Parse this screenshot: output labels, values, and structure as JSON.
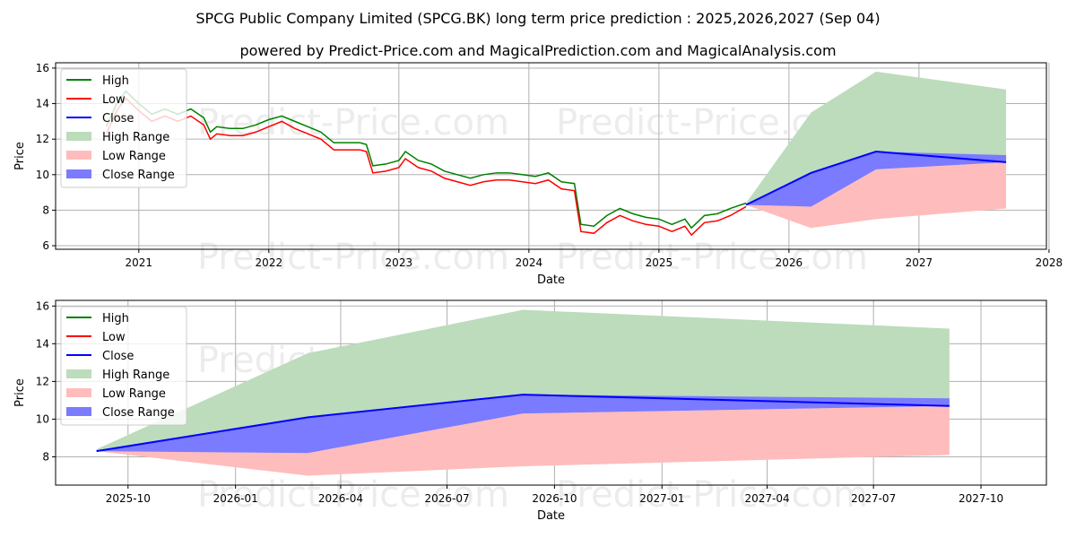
{
  "title": "SPCG Public Company Limited (SPCG.BK) long term price prediction : 2025,2026,2027 (Sep 04)",
  "subtitle": "powered by Predict-Price.com and MagicalPrediction.com and MagicalAnalysis.com",
  "watermark": "Predict-Price.com",
  "colors": {
    "high": "#008000",
    "low": "#ff0000",
    "close": "#0000ff",
    "high_range": "#bcdcbc",
    "low_range": "#ffbcbc",
    "close_range": "#7b7bff"
  },
  "legend": [
    "High",
    "Low",
    "Close",
    "High Range",
    "Low Range",
    "Close Range"
  ],
  "chart_data": [
    {
      "type": "line",
      "xlabel": "Date",
      "ylabel": "Price",
      "xlim": [
        2020.36,
        2027.98
      ],
      "ylim": [
        5.8,
        16.3
      ],
      "xticks": [
        2021,
        2022,
        2023,
        2024,
        2025,
        2026,
        2027,
        2028
      ],
      "yticks": [
        6,
        8,
        10,
        12,
        14,
        16
      ],
      "grid": true,
      "legend_placement": "top-left",
      "history": {
        "x": [
          2020.75,
          2020.83,
          2020.9,
          2021.0,
          2021.1,
          2021.2,
          2021.3,
          2021.4,
          2021.5,
          2021.55,
          2021.6,
          2021.7,
          2021.8,
          2021.9,
          2022.0,
          2022.1,
          2022.2,
          2022.3,
          2022.4,
          2022.5,
          2022.6,
          2022.7,
          2022.75,
          2022.8,
          2022.9,
          2023.0,
          2023.05,
          2023.15,
          2023.25,
          2023.35,
          2023.45,
          2023.55,
          2023.65,
          2023.75,
          2023.85,
          2023.95,
          2024.05,
          2024.15,
          2024.25,
          2024.35,
          2024.4,
          2024.5,
          2024.6,
          2024.7,
          2024.8,
          2024.9,
          2025.0,
          2025.1,
          2025.2,
          2025.25,
          2025.35,
          2025.45,
          2025.55,
          2025.67
        ],
        "high": [
          12.7,
          14.0,
          14.7,
          14.0,
          13.4,
          13.7,
          13.4,
          13.7,
          13.2,
          12.4,
          12.7,
          12.6,
          12.6,
          12.8,
          13.1,
          13.3,
          13.0,
          12.7,
          12.4,
          11.8,
          11.8,
          11.8,
          11.7,
          10.5,
          10.6,
          10.8,
          11.3,
          10.8,
          10.6,
          10.2,
          10.0,
          9.8,
          10.0,
          10.1,
          10.1,
          10.0,
          9.9,
          10.1,
          9.6,
          9.5,
          7.2,
          7.1,
          7.7,
          8.1,
          7.8,
          7.6,
          7.5,
          7.2,
          7.5,
          7.0,
          7.7,
          7.8,
          8.1,
          8.4
        ],
        "low": [
          12.3,
          13.6,
          14.3,
          13.6,
          13.0,
          13.3,
          13.0,
          13.3,
          12.8,
          12.0,
          12.3,
          12.2,
          12.2,
          12.4,
          12.7,
          13.0,
          12.6,
          12.3,
          12.0,
          11.4,
          11.4,
          11.4,
          11.3,
          10.1,
          10.2,
          10.4,
          10.9,
          10.4,
          10.2,
          9.8,
          9.6,
          9.4,
          9.6,
          9.7,
          9.7,
          9.6,
          9.5,
          9.7,
          9.2,
          9.1,
          6.8,
          6.7,
          7.3,
          7.7,
          7.4,
          7.2,
          7.1,
          6.8,
          7.1,
          6.6,
          7.3,
          7.4,
          7.7,
          8.2
        ]
      },
      "forecast": {
        "x": [
          2025.67,
          2026.17,
          2026.67,
          2027.67
        ],
        "close": [
          8.3,
          10.1,
          11.3,
          10.7
        ],
        "high_range": [
          [
            8.3,
            8.4
          ],
          [
            8.2,
            13.5
          ],
          [
            10.3,
            15.8
          ],
          [
            10.7,
            14.8
          ]
        ],
        "low_range": [
          [
            8.3,
            8.3
          ],
          [
            7.0,
            8.2
          ],
          [
            7.5,
            10.3
          ],
          [
            8.1,
            10.7
          ]
        ],
        "close_range": [
          [
            8.3,
            8.3
          ],
          [
            8.2,
            10.1
          ],
          [
            10.3,
            11.3
          ],
          [
            10.7,
            11.1
          ]
        ]
      }
    },
    {
      "type": "line",
      "xlabel": "Date",
      "ylabel": "Price",
      "ylim": [
        6.5,
        16.3
      ],
      "xticks": [
        "2025-10",
        "2026-01",
        "2026-04",
        "2026-07",
        "2026-10",
        "2027-01",
        "2027-04",
        "2027-07",
        "2027-10"
      ],
      "yticks": [
        8,
        10,
        12,
        14,
        16
      ],
      "grid": true,
      "legend_placement": "top-left",
      "forecast": {
        "dates": [
          "2025-09-04",
          "2026-03-04",
          "2026-09-04",
          "2027-09-04"
        ],
        "close": [
          8.3,
          10.1,
          11.3,
          10.7
        ],
        "high_range": [
          [
            8.3,
            8.4
          ],
          [
            8.2,
            13.5
          ],
          [
            10.3,
            15.8
          ],
          [
            10.7,
            14.8
          ]
        ],
        "low_range": [
          [
            8.3,
            8.3
          ],
          [
            7.0,
            8.2
          ],
          [
            7.5,
            10.3
          ],
          [
            8.1,
            10.7
          ]
        ],
        "close_range": [
          [
            8.3,
            8.3
          ],
          [
            8.2,
            10.1
          ],
          [
            10.3,
            11.3
          ],
          [
            10.7,
            11.1
          ]
        ]
      }
    }
  ]
}
